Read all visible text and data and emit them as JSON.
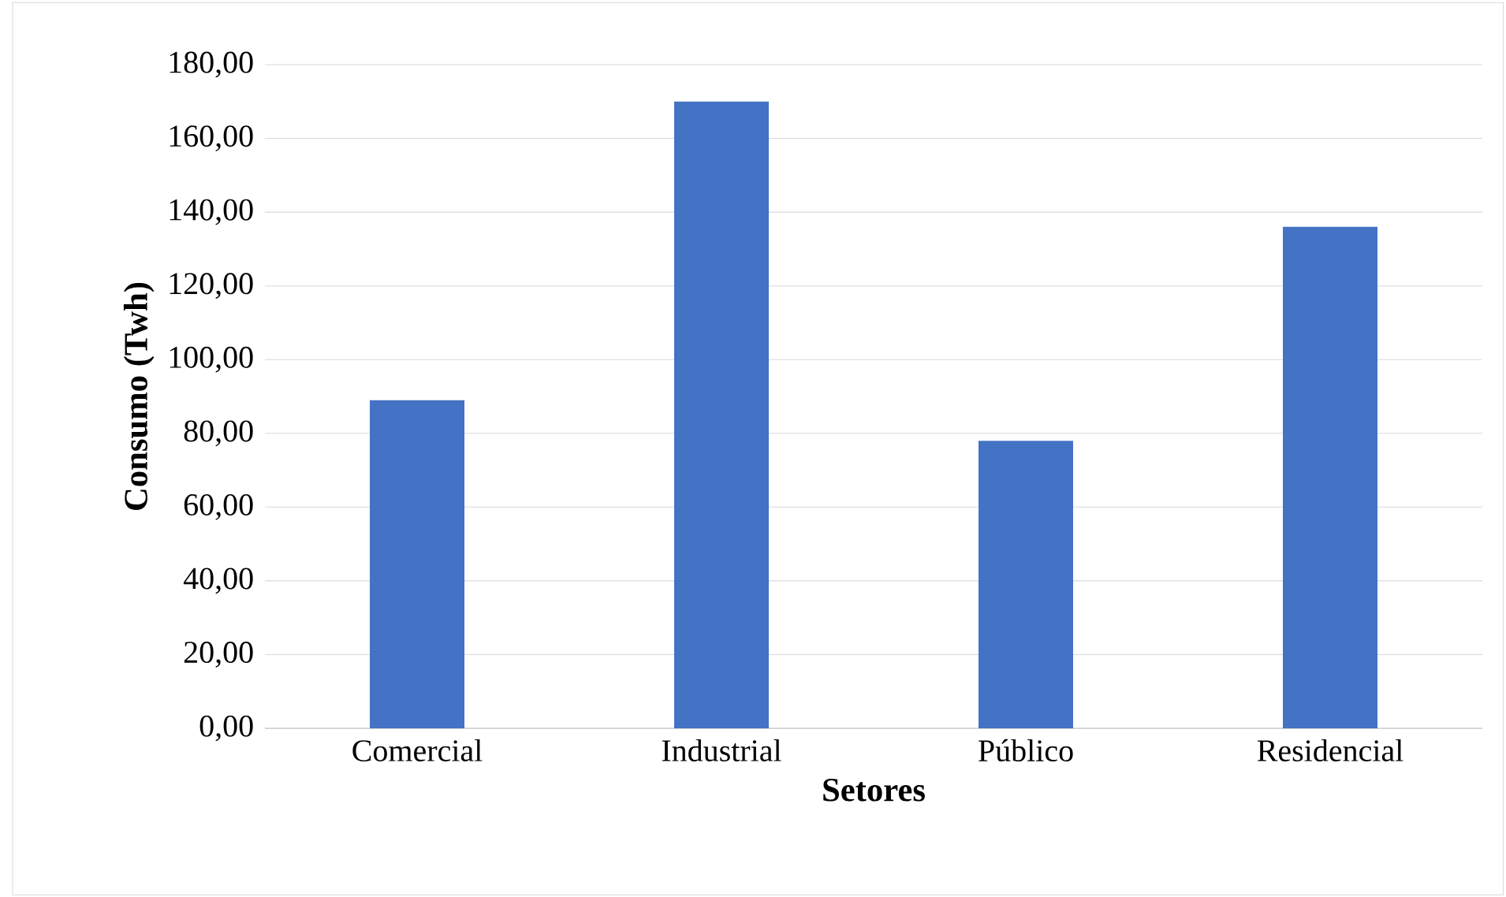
{
  "chart_data": {
    "type": "bar",
    "xlabel": "Setores",
    "ylabel": "Consumo (Twh)",
    "categories": [
      "Comercial",
      "Industrial",
      "Público",
      "Residencial"
    ],
    "values": [
      89,
      170,
      78,
      136
    ],
    "color": "#4472c4",
    "ylim": [
      0,
      180
    ],
    "yticks": [
      {
        "value": 0,
        "label": "0,00"
      },
      {
        "value": 20,
        "label": "20,00"
      },
      {
        "value": 40,
        "label": "40,00"
      },
      {
        "value": 60,
        "label": "60,00"
      },
      {
        "value": 80,
        "label": "80,00"
      },
      {
        "value": 100,
        "label": "100,00"
      },
      {
        "value": 120,
        "label": "120,00"
      },
      {
        "value": 140,
        "label": "140,00"
      },
      {
        "value": 160,
        "label": "160,00"
      },
      {
        "value": 180,
        "label": "180,00"
      }
    ],
    "grid": "y"
  }
}
